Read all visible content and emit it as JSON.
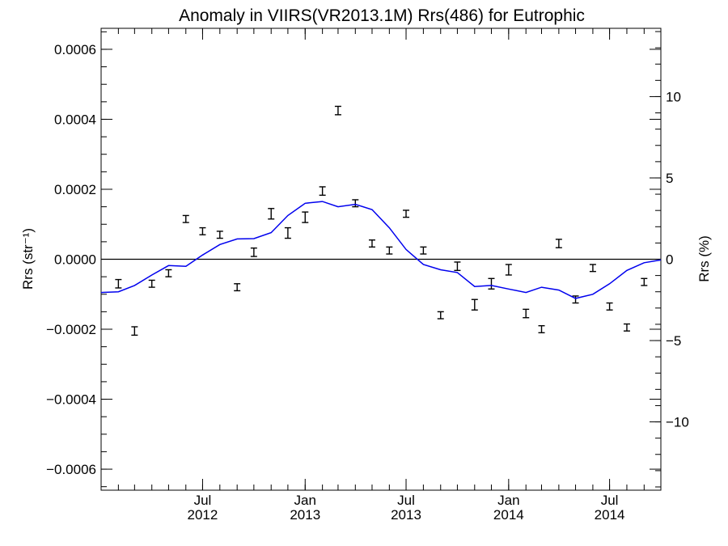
{
  "chart_data": {
    "type": "scatter",
    "title": "Anomaly in VIIRS(VR2013.1M) Rrs(486) for Eutrophic",
    "ylabel_left": "Rrs (str⁻¹)",
    "ylabel_right": "Rrs (%)",
    "xlim": [
      "2012-01-01",
      "2014-10-01"
    ],
    "ylim_left": [
      -0.00066,
      0.00066
    ],
    "ylim_right": [
      -14.2,
      14.2
    ],
    "x_ticks": [
      {
        "date": "2012-07-01",
        "label": "Jul",
        "year": "2012"
      },
      {
        "date": "2013-01-01",
        "label": "Jan",
        "year": "2013"
      },
      {
        "date": "2013-07-01",
        "label": "Jul",
        "year": "2013"
      },
      {
        "date": "2014-01-01",
        "label": "Jan",
        "year": "2014"
      },
      {
        "date": "2014-07-01",
        "label": "Jul",
        "year": "2014"
      }
    ],
    "y_ticks_left": [
      {
        "value": 0.0006,
        "label": "0.0006"
      },
      {
        "value": 0.0004,
        "label": "0.0004"
      },
      {
        "value": 0.0002,
        "label": "0.0002"
      },
      {
        "value": 0.0,
        "label": "0.0000"
      },
      {
        "value": -0.0002,
        "label": "−0.0002"
      },
      {
        "value": -0.0004,
        "label": "−0.0004"
      },
      {
        "value": -0.0006,
        "label": "−0.0006"
      }
    ],
    "y_ticks_right": [
      {
        "value": 10,
        "label": "10"
      },
      {
        "value": 5,
        "label": "5"
      },
      {
        "value": 0,
        "label": "0"
      },
      {
        "value": -5,
        "label": "−5"
      },
      {
        "value": -10,
        "label": "−10"
      }
    ],
    "series": [
      {
        "kind": "errorbar",
        "color": "#000000",
        "points": [
          {
            "x": "2012-02-01",
            "y": -7e-05,
            "err": 1.2e-05
          },
          {
            "x": "2012-03-01",
            "y": -0.000205,
            "err": 1.2e-05
          },
          {
            "x": "2012-04-01",
            "y": -7e-05,
            "err": 1e-05
          },
          {
            "x": "2012-05-01",
            "y": -4e-05,
            "err": 1e-05
          },
          {
            "x": "2012-06-01",
            "y": 0.000115,
            "err": 1e-05
          },
          {
            "x": "2012-07-01",
            "y": 8e-05,
            "err": 1e-05
          },
          {
            "x": "2012-08-01",
            "y": 7e-05,
            "err": 1e-05
          },
          {
            "x": "2012-09-01",
            "y": -8e-05,
            "err": 1e-05
          },
          {
            "x": "2012-10-01",
            "y": 2e-05,
            "err": 1.2e-05
          },
          {
            "x": "2012-11-01",
            "y": 0.00013,
            "err": 1.5e-05
          },
          {
            "x": "2012-12-01",
            "y": 7.5e-05,
            "err": 1.5e-05
          },
          {
            "x": "2013-01-01",
            "y": 0.00012,
            "err": 1.5e-05
          },
          {
            "x": "2013-02-01",
            "y": 0.000195,
            "err": 1.2e-05
          },
          {
            "x": "2013-03-01",
            "y": 0.000425,
            "err": 1.2e-05
          },
          {
            "x": "2013-04-01",
            "y": 0.00016,
            "err": 1e-05
          },
          {
            "x": "2013-05-01",
            "y": 4.5e-05,
            "err": 1e-05
          },
          {
            "x": "2013-06-01",
            "y": 2.5e-05,
            "err": 1e-05
          },
          {
            "x": "2013-07-01",
            "y": 0.00013,
            "err": 1e-05
          },
          {
            "x": "2013-08-01",
            "y": 2.5e-05,
            "err": 1e-05
          },
          {
            "x": "2013-09-01",
            "y": -0.00016,
            "err": 1e-05
          },
          {
            "x": "2013-10-01",
            "y": -2e-05,
            "err": 1.2e-05
          },
          {
            "x": "2013-11-01",
            "y": -0.00013,
            "err": 1.5e-05
          },
          {
            "x": "2013-12-01",
            "y": -7e-05,
            "err": 1.5e-05
          },
          {
            "x": "2014-01-01",
            "y": -3e-05,
            "err": 1.5e-05
          },
          {
            "x": "2014-02-01",
            "y": -0.000155,
            "err": 1.2e-05
          },
          {
            "x": "2014-03-01",
            "y": -0.0002,
            "err": 1e-05
          },
          {
            "x": "2014-04-01",
            "y": 4.5e-05,
            "err": 1.2e-05
          },
          {
            "x": "2014-05-01",
            "y": -0.000115,
            "err": 1e-05
          },
          {
            "x": "2014-06-01",
            "y": -2.5e-05,
            "err": 1e-05
          },
          {
            "x": "2014-07-01",
            "y": -0.000135,
            "err": 1e-05
          },
          {
            "x": "2014-08-01",
            "y": -0.000195,
            "err": 1e-05
          },
          {
            "x": "2014-09-01",
            "y": -6.5e-05,
            "err": 1e-05
          }
        ]
      },
      {
        "kind": "line",
        "color": "#0000ee",
        "points": [
          {
            "x": "2012-01-01",
            "y": -9.5e-05
          },
          {
            "x": "2012-02-01",
            "y": -9.3e-05
          },
          {
            "x": "2012-03-01",
            "y": -7.5e-05
          },
          {
            "x": "2012-04-01",
            "y": -4.5e-05
          },
          {
            "x": "2012-05-01",
            "y": -1.8e-05
          },
          {
            "x": "2012-06-01",
            "y": -2e-05
          },
          {
            "x": "2012-07-01",
            "y": 1.2e-05
          },
          {
            "x": "2012-08-01",
            "y": 4.2e-05
          },
          {
            "x": "2012-09-01",
            "y": 5.8e-05
          },
          {
            "x": "2012-10-01",
            "y": 5.9e-05
          },
          {
            "x": "2012-11-01",
            "y": 7.6e-05
          },
          {
            "x": "2012-12-01",
            "y": 0.000125
          },
          {
            "x": "2013-01-01",
            "y": 0.00016
          },
          {
            "x": "2013-02-01",
            "y": 0.000165
          },
          {
            "x": "2013-03-01",
            "y": 0.00015
          },
          {
            "x": "2013-04-01",
            "y": 0.000157
          },
          {
            "x": "2013-05-01",
            "y": 0.000142
          },
          {
            "x": "2013-06-01",
            "y": 9e-05
          },
          {
            "x": "2013-07-01",
            "y": 2.8e-05
          },
          {
            "x": "2013-08-01",
            "y": -1.5e-05
          },
          {
            "x": "2013-09-01",
            "y": -3e-05
          },
          {
            "x": "2013-10-01",
            "y": -3.8e-05
          },
          {
            "x": "2013-11-01",
            "y": -7.8e-05
          },
          {
            "x": "2013-12-01",
            "y": -7.5e-05
          },
          {
            "x": "2014-01-01",
            "y": -8.5e-05
          },
          {
            "x": "2014-02-01",
            "y": -9.5e-05
          },
          {
            "x": "2014-03-01",
            "y": -8e-05
          },
          {
            "x": "2014-04-01",
            "y": -8.8e-05
          },
          {
            "x": "2014-05-01",
            "y": -0.000112
          },
          {
            "x": "2014-06-01",
            "y": -0.0001
          },
          {
            "x": "2014-07-01",
            "y": -7e-05
          },
          {
            "x": "2014-08-01",
            "y": -3.2e-05
          },
          {
            "x": "2014-09-01",
            "y": -1e-05
          },
          {
            "x": "2014-10-01",
            "y": -2e-06
          }
        ]
      }
    ],
    "zero_line": true,
    "grid": false
  }
}
